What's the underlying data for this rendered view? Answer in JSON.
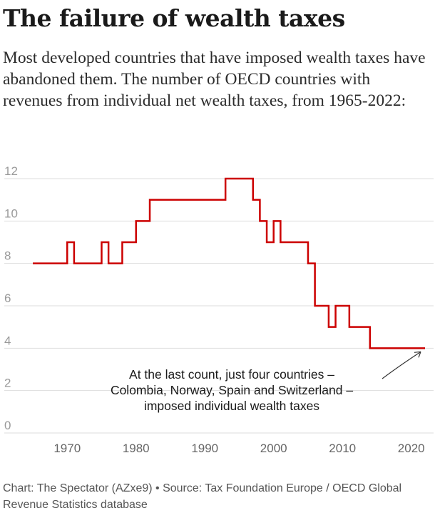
{
  "header": {
    "title": "The failure of wealth taxes",
    "subtitle": "Most developed countries that have imposed wealth taxes have abandoned them. The number of OECD countries with revenues from individual net wealth taxes, from 1965-2022:"
  },
  "footer": {
    "credit": "Chart: The Spectator (AZxe9) • Source: Tax Foundation Europe / OECD Global Revenue Statistics database"
  },
  "chart_data": {
    "type": "line",
    "step": true,
    "title": "",
    "xlabel": "",
    "ylabel": "",
    "xlim": [
      1965,
      2022
    ],
    "ylim": [
      0,
      12
    ],
    "grid": true,
    "x_ticks": [
      1970,
      1980,
      1990,
      2000,
      2010,
      2020
    ],
    "y_ticks": [
      0,
      2,
      4,
      6,
      8,
      10,
      12
    ],
    "series": [
      {
        "color": "#cc0000",
        "x": [
          1965,
          1970,
          1971,
          1975,
          1976,
          1978,
          1980,
          1982,
          1993,
          1997,
          1998,
          1999,
          2000,
          2001,
          2005,
          2006,
          2008,
          2009,
          2011,
          2014,
          2022
        ],
        "y": [
          8,
          9,
          8,
          9,
          8,
          9,
          10,
          11,
          12,
          11,
          10,
          9,
          10,
          9,
          8,
          6,
          5,
          6,
          5,
          4,
          4
        ]
      }
    ],
    "annotations": [
      {
        "lines": [
          "At the last count, just four countries –",
          "Colombia, Norway, Spain and Switzerland –",
          "imposed individual wealth taxes"
        ],
        "x": 2022,
        "y": 4
      }
    ]
  }
}
